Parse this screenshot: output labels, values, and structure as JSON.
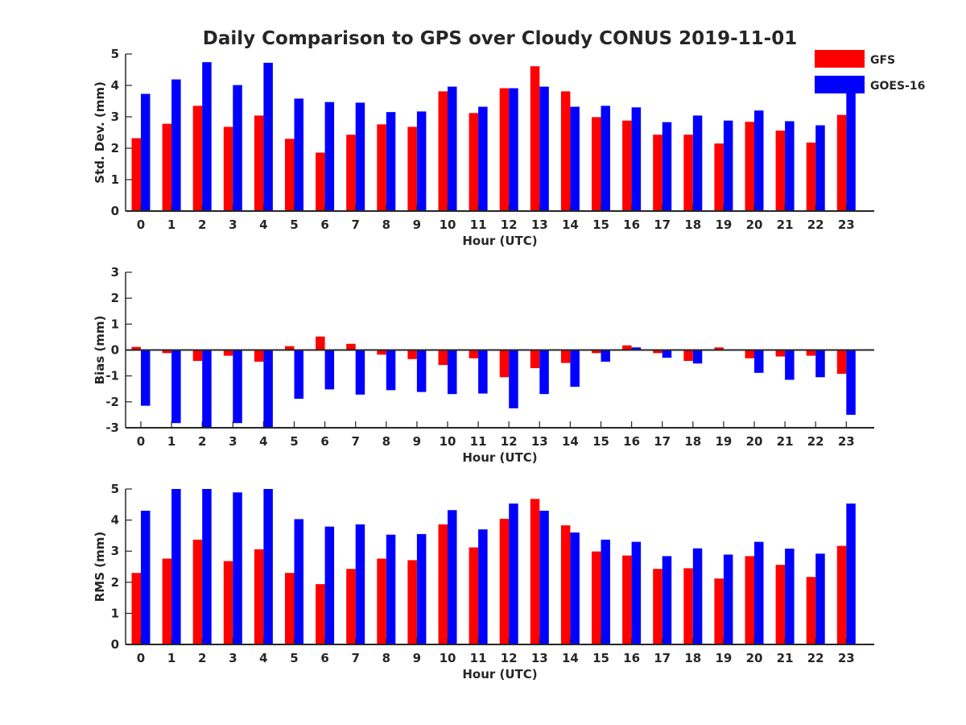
{
  "title": "Daily Comparison to GPS over Cloudy CONUS 2019-11-01",
  "legend": [
    {
      "label": "GFS",
      "color": "#ff0000"
    },
    {
      "label": "GOES-16",
      "color": "#0000ff"
    }
  ],
  "chart_data": [
    {
      "type": "bar",
      "xlabel": "Hour (UTC)",
      "ylabel": "Std. Dev. (mm)",
      "ylim": [
        0,
        5
      ],
      "yticks": [
        "0",
        "1",
        "2",
        "3",
        "4",
        "5"
      ],
      "categories": [
        "0",
        "1",
        "2",
        "3",
        "4",
        "5",
        "6",
        "7",
        "8",
        "9",
        "10",
        "11",
        "12",
        "13",
        "14",
        "15",
        "16",
        "17",
        "18",
        "19",
        "20",
        "21",
        "22",
        "23"
      ],
      "series": [
        {
          "name": "GFS",
          "color": "#ff0000",
          "values": [
            2.32,
            2.78,
            3.35,
            2.68,
            3.04,
            2.3,
            1.86,
            2.43,
            2.76,
            2.68,
            3.81,
            3.12,
            3.91,
            4.61,
            3.81,
            2.99,
            2.88,
            2.43,
            2.43,
            2.15,
            2.84,
            2.56,
            2.18,
            3.06
          ]
        },
        {
          "name": "GOES-16",
          "color": "#0000ff",
          "values": [
            3.73,
            4.19,
            4.74,
            4.01,
            4.72,
            3.58,
            3.47,
            3.45,
            3.15,
            3.17,
            3.96,
            3.32,
            3.91,
            3.96,
            3.32,
            3.35,
            3.3,
            2.83,
            3.04,
            2.88,
            3.2,
            2.86,
            2.73,
            3.81
          ]
        }
      ]
    },
    {
      "type": "bar",
      "xlabel": "Hour (UTC)",
      "ylabel": "Bias (mm)",
      "ylim": [
        -3,
        3
      ],
      "yticks": [
        "-3",
        "-2",
        "-1",
        "0",
        "1",
        "2",
        "3"
      ],
      "categories": [
        "0",
        "1",
        "2",
        "3",
        "4",
        "5",
        "6",
        "7",
        "8",
        "9",
        "10",
        "11",
        "12",
        "13",
        "14",
        "15",
        "16",
        "17",
        "18",
        "19",
        "20",
        "21",
        "22",
        "23"
      ],
      "series": [
        {
          "name": "GFS",
          "color": "#ff0000",
          "values": [
            0.12,
            -0.12,
            -0.42,
            -0.22,
            -0.45,
            0.15,
            0.52,
            0.24,
            -0.18,
            -0.35,
            -0.58,
            -0.32,
            -1.05,
            -0.7,
            -0.5,
            -0.12,
            0.18,
            -0.12,
            -0.42,
            0.1,
            -0.32,
            -0.25,
            -0.22,
            -0.92
          ]
        },
        {
          "name": "GOES-16",
          "color": "#0000ff",
          "values": [
            -2.15,
            -2.82,
            -3.0,
            -2.82,
            -3.0,
            -1.88,
            -1.52,
            -1.72,
            -1.55,
            -1.62,
            -1.7,
            -1.68,
            -2.25,
            -1.7,
            -1.42,
            -0.45,
            0.1,
            -0.3,
            -0.52,
            0,
            -0.88,
            -1.15,
            -1.05,
            -2.5
          ]
        }
      ]
    },
    {
      "type": "bar",
      "xlabel": "Hour (UTC)",
      "ylabel": "RMS (mm)",
      "ylim": [
        0,
        5
      ],
      "yticks": [
        "0",
        "1",
        "2",
        "3",
        "4",
        "5"
      ],
      "categories": [
        "0",
        "1",
        "2",
        "3",
        "4",
        "5",
        "6",
        "7",
        "8",
        "9",
        "10",
        "11",
        "12",
        "13",
        "14",
        "15",
        "16",
        "17",
        "18",
        "19",
        "20",
        "21",
        "22",
        "23"
      ],
      "series": [
        {
          "name": "GFS",
          "color": "#ff0000",
          "values": [
            2.3,
            2.76,
            3.37,
            2.68,
            3.06,
            2.3,
            1.94,
            2.43,
            2.76,
            2.71,
            3.86,
            3.12,
            4.04,
            4.68,
            3.83,
            2.99,
            2.86,
            2.43,
            2.45,
            2.12,
            2.84,
            2.56,
            2.17,
            3.17
          ]
        },
        {
          "name": "GOES-16",
          "color": "#0000ff",
          "values": [
            4.3,
            5.0,
            5.0,
            4.89,
            5.0,
            4.03,
            3.79,
            3.86,
            3.53,
            3.55,
            4.32,
            3.7,
            4.53,
            4.3,
            3.6,
            3.37,
            3.3,
            2.84,
            3.09,
            2.89,
            3.3,
            3.08,
            2.92,
            4.53
          ]
        }
      ]
    }
  ]
}
